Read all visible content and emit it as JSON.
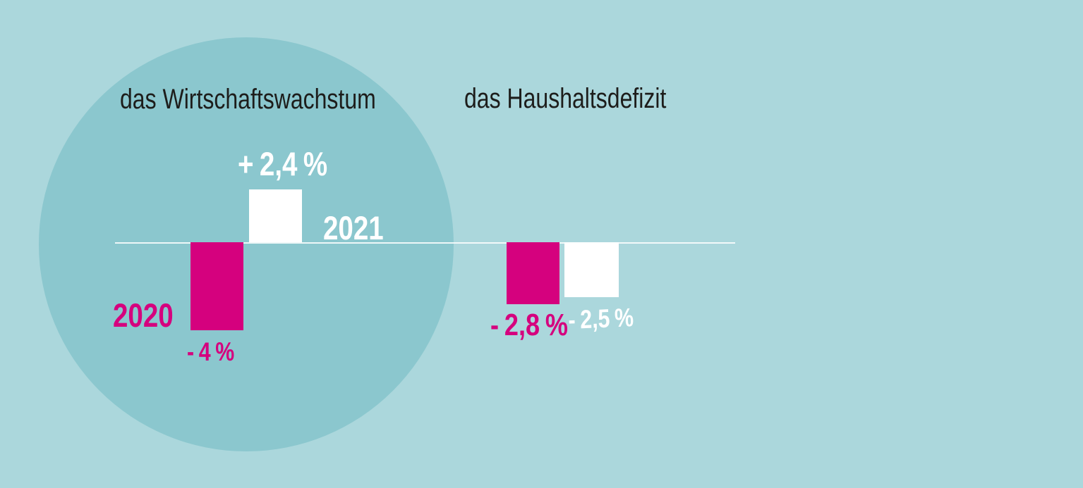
{
  "canvas": {
    "background_color": "#abd7dc",
    "circle_color": "#8bc7ce",
    "baseline_color": "rgba(255,255,255,0.85)"
  },
  "colors": {
    "magenta": "#d5017e",
    "white": "#ffffff",
    "title_text": "#1d1d1b"
  },
  "chart_data": [
    {
      "type": "bar",
      "title": "das Wirtschaftswachstum",
      "categories": [
        "2020",
        "2021"
      ],
      "values": [
        -4,
        2.4
      ],
      "data_labels": [
        "- 4 %",
        "+ 2,4 %"
      ],
      "unit": "%",
      "bar_colors": [
        "#d5017e",
        "#ffffff"
      ],
      "category_label_colors": [
        "#d5017e",
        "#ffffff"
      ],
      "baseline_value": 0,
      "axes_visible": false,
      "gridlines": false,
      "legend": "none"
    },
    {
      "type": "bar",
      "title": "das Haushaltsdefizit",
      "categories": [
        "2020",
        "2021"
      ],
      "values": [
        -2.8,
        -2.5
      ],
      "data_labels": [
        "- 2,8 %",
        "- 2,5 %"
      ],
      "unit": "%",
      "bar_colors": [
        "#d5017e",
        "#ffffff"
      ],
      "data_label_colors": [
        "#d5017e",
        "#ffffff"
      ],
      "baseline_value": 0,
      "axes_visible": false,
      "gridlines": false,
      "legend": "none"
    }
  ]
}
